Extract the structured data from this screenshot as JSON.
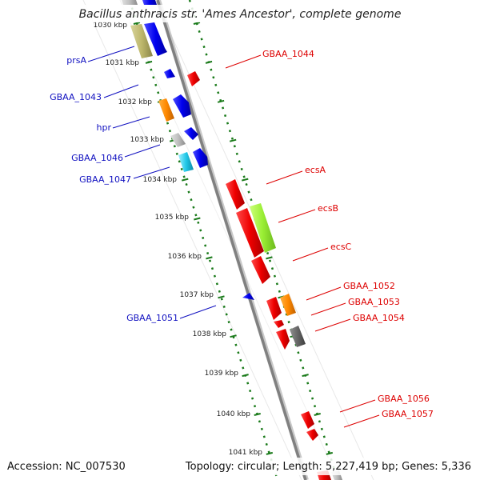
{
  "title": "Bacillus anthracis str. 'Ames Ancestor', complete genome",
  "footer": {
    "accession": "Accession: NC_007530",
    "topology": "Topology: circular; Length: 5,227,419 bp; Genes: 5,336"
  },
  "colors": {
    "forward_label": "#1010c0",
    "reverse_label": "#dd0000",
    "tick": "#1a7a1a",
    "backbone": "#808080"
  },
  "kbp_ticks": [
    "1030 kbp",
    "1031 kbp",
    "1032 kbp",
    "1033 kbp",
    "1034 kbp",
    "1035 kbp",
    "1036 kbp",
    "1037 kbp",
    "1038 kbp",
    "1039 kbp",
    "1040 kbp",
    "1041 kbp"
  ],
  "labels": [
    {
      "text": "prsA",
      "strand": "forward"
    },
    {
      "text": "GBAA_1043",
      "strand": "forward"
    },
    {
      "text": "hpr",
      "strand": "forward"
    },
    {
      "text": "GBAA_1046",
      "strand": "forward"
    },
    {
      "text": "GBAA_1047",
      "strand": "forward"
    },
    {
      "text": "GBAA_1051",
      "strand": "forward"
    },
    {
      "text": "GBAA_1044",
      "strand": "reverse"
    },
    {
      "text": "ecsA",
      "strand": "reverse"
    },
    {
      "text": "ecsB",
      "strand": "reverse"
    },
    {
      "text": "ecsC",
      "strand": "reverse"
    },
    {
      "text": "GBAA_1052",
      "strand": "reverse"
    },
    {
      "text": "GBAA_1053",
      "strand": "reverse"
    },
    {
      "text": "GBAA_1054",
      "strand": "reverse"
    },
    {
      "text": "GBAA_1056",
      "strand": "reverse"
    },
    {
      "text": "GBAA_1057",
      "strand": "reverse"
    }
  ]
}
